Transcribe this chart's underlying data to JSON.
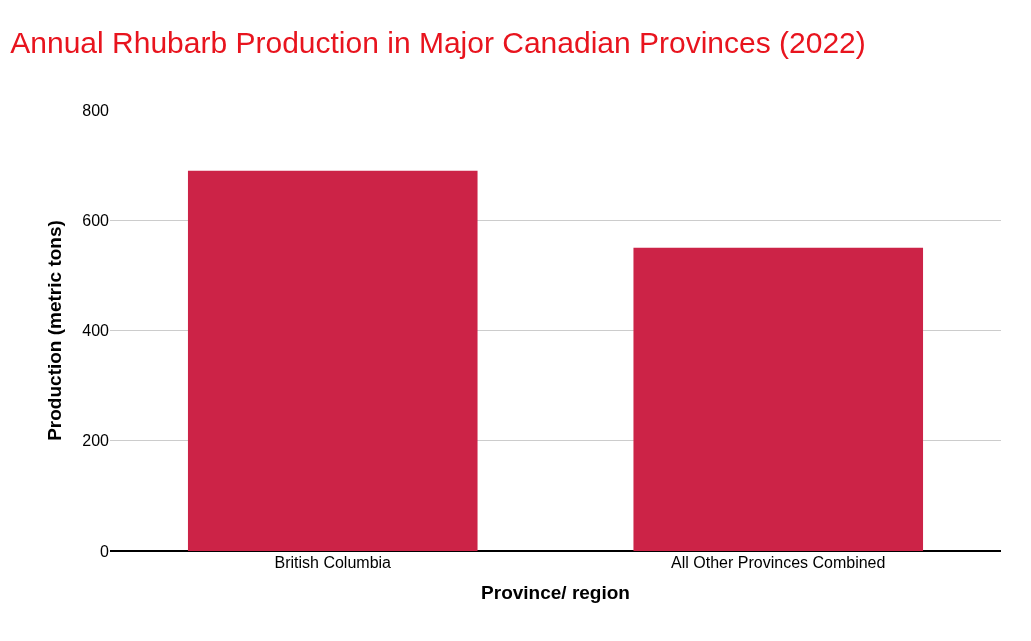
{
  "chart_data": {
    "type": "bar",
    "title": "Annual Rhubarb Production in Major Canadian Provinces (2022)",
    "xlabel": "Province/ region",
    "ylabel": "Production (metric tons)",
    "categories": [
      "British Columbia",
      "All Other Provinces Combined"
    ],
    "values": [
      690,
      550
    ],
    "color": "#cc2347",
    "ylim": [
      0,
      800
    ],
    "yticks": [
      0,
      200,
      400,
      600,
      800
    ],
    "grid": "y"
  }
}
